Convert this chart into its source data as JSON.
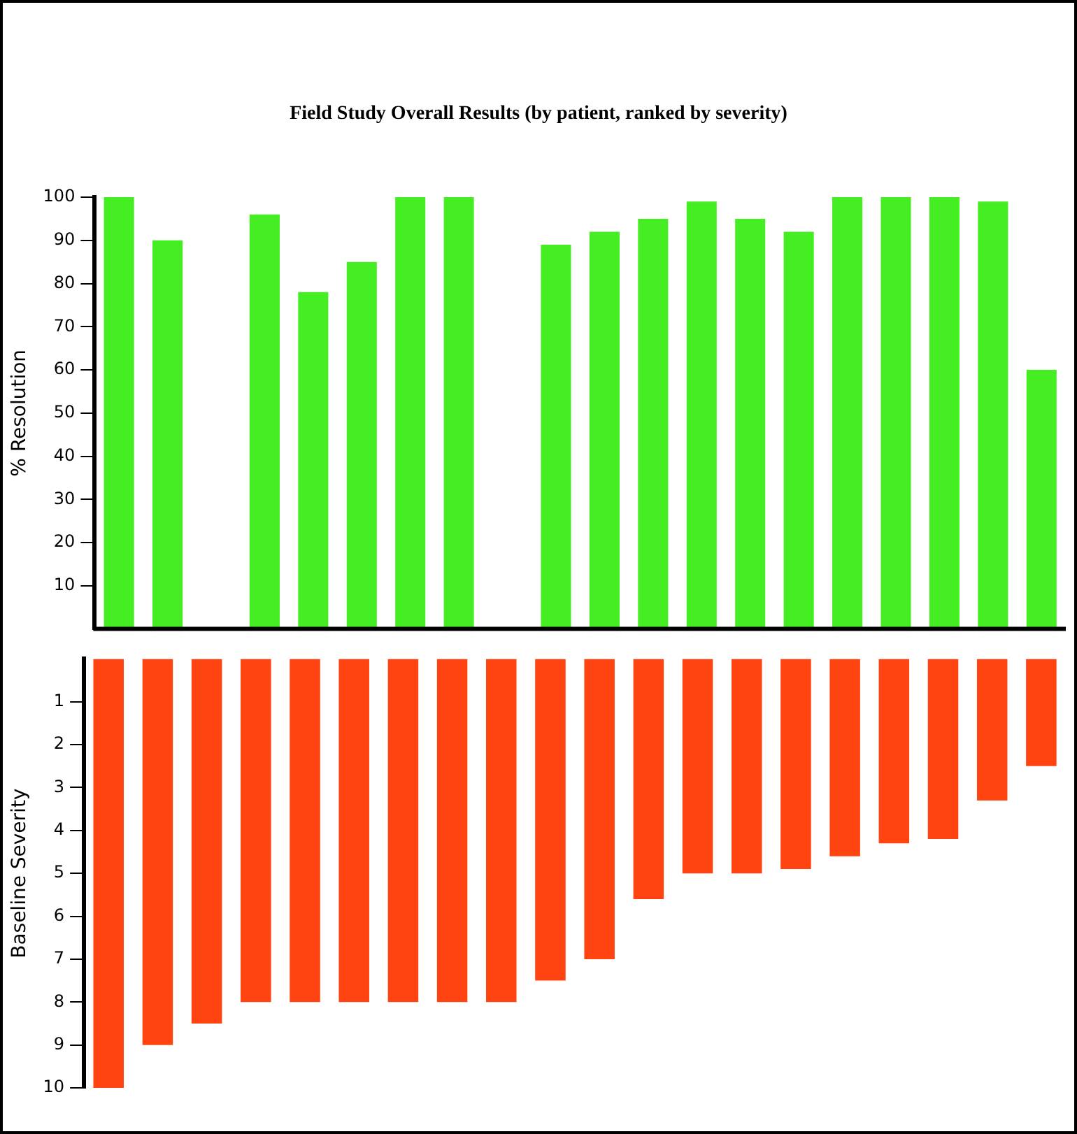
{
  "chart_data": [
    {
      "type": "bar",
      "title": "Field Study Overall Results (by patient, ranked by severity)",
      "ylabel": "% Resolution",
      "categories": [
        null,
        null,
        null,
        null,
        null,
        null,
        null,
        null,
        null,
        null,
        null,
        null,
        null,
        null,
        null,
        null,
        null,
        null,
        null,
        null
      ],
      "values": [
        100,
        90,
        0,
        96,
        78,
        85,
        100,
        100,
        0,
        89,
        92,
        95,
        99,
        95,
        92,
        100,
        100,
        100,
        99,
        60
      ],
      "color": "#44ee22",
      "ylim": [
        0,
        100
      ],
      "yticks": [
        10,
        20,
        30,
        40,
        50,
        60,
        70,
        80,
        90,
        100
      ],
      "grid": false,
      "legend": false,
      "tick_labels": "y"
    },
    {
      "type": "bar",
      "ylabel": "Baseline Severity",
      "categories": [
        null,
        null,
        null,
        null,
        null,
        null,
        null,
        null,
        null,
        null,
        null,
        null,
        null,
        null,
        null,
        null,
        null,
        null,
        null,
        null
      ],
      "values": [
        10,
        9,
        8.5,
        8,
        8,
        8,
        8,
        8,
        8,
        7.5,
        7,
        5.6,
        5,
        5,
        4.9,
        4.6,
        4.3,
        4.2,
        3.3,
        2.5
      ],
      "color": "#ff4411",
      "ylim": [
        10,
        0
      ],
      "yticks": [
        1,
        2,
        3,
        4,
        5,
        6,
        7,
        8,
        9,
        10
      ],
      "grid": false,
      "legend": false,
      "tick_labels": "y"
    }
  ]
}
